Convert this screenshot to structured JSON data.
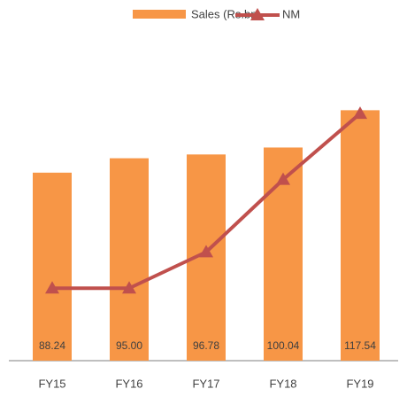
{
  "chart_data": {
    "type": "bar",
    "categories": [
      "FY15",
      "FY16",
      "FY17",
      "FY18",
      "FY19"
    ],
    "series": [
      {
        "name": "Sales (Rs.bn)",
        "color": "#f79646",
        "type": "bar",
        "values": [
          88.24,
          95.0,
          96.78,
          100.04,
          117.54
        ],
        "value_labels": [
          "88.24",
          "95.00",
          "96.78",
          "100.04",
          "117.54"
        ]
      },
      {
        "name": "NM",
        "color": "#c0504d",
        "type": "line",
        "values": [
          34,
          34,
          51,
          85,
          116
        ]
      }
    ],
    "ylim": [
      0,
      136
    ],
    "legend": "top"
  }
}
